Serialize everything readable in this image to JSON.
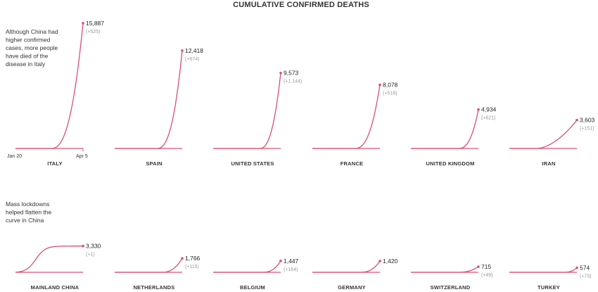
{
  "chart_data": {
    "type": "line",
    "title": "CUMULATIVE CONFIRMED DEATHS",
    "x_start_label": "Jan 20",
    "x_end_label": "Apr 5",
    "shared_ylim": [
      0,
      15887
    ],
    "annotations": [
      "Although China had higher confirmed cases, more people have died of the disease in Italy",
      "Mass lockdowns helped flatten the curve in China"
    ],
    "panels": [
      {
        "country": "ITALY",
        "final": 15887,
        "final_label": "15,887",
        "daily_change_label": "(+525)",
        "curve": "exp",
        "onset": 0.52
      },
      {
        "country": "SPAIN",
        "final": 12418,
        "final_label": "12,418",
        "daily_change_label": "(+674)",
        "curve": "exp",
        "onset": 0.62
      },
      {
        "country": "UNITED STATES",
        "final": 9573,
        "final_label": "9,573",
        "daily_change_label": "(+1,144)",
        "curve": "exp",
        "onset": 0.68
      },
      {
        "country": "FRANCE",
        "final": 8078,
        "final_label": "8,078",
        "daily_change_label": "(+518)",
        "curve": "exp",
        "onset": 0.62
      },
      {
        "country": "UNITED KINGDOM",
        "final": 4934,
        "final_label": "4,934",
        "daily_change_label": "(+621)",
        "curve": "exp",
        "onset": 0.7
      },
      {
        "country": "IRAN",
        "final": 3603,
        "final_label": "3,603",
        "daily_change_label": "(+151)",
        "curve": "steady",
        "onset": 0.4
      },
      {
        "country": "MAINLAND CHINA",
        "final": 3330,
        "final_label": "3,330",
        "daily_change_label": "(+1)",
        "curve": "flat",
        "onset": 0.0
      },
      {
        "country": "NETHERLANDS",
        "final": 1766,
        "final_label": "1,766",
        "daily_change_label": "(+115)",
        "curve": "exp",
        "onset": 0.68
      },
      {
        "country": "BELGIUM",
        "final": 1447,
        "final_label": "1,447",
        "daily_change_label": "(+164)",
        "curve": "exp",
        "onset": 0.72
      },
      {
        "country": "GERMANY",
        "final": 1420,
        "final_label": "1,420",
        "daily_change_label": "",
        "curve": "exp",
        "onset": 0.7
      },
      {
        "country": "SWITZERLAND",
        "final": 715,
        "final_label": "715",
        "daily_change_label": "(+49)",
        "curve": "exp",
        "onset": 0.68
      },
      {
        "country": "TURKEY",
        "final": 574,
        "final_label": "574",
        "daily_change_label": "(+73)",
        "curve": "exp",
        "onset": 0.8
      }
    ],
    "line_color": "#d9506e",
    "grid": false
  }
}
